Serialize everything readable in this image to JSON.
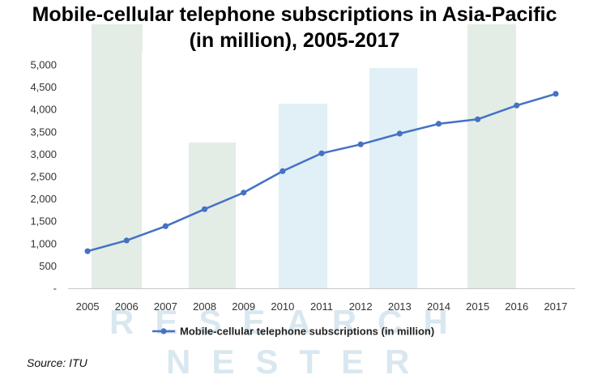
{
  "chart_data": {
    "type": "line",
    "title_line1": "Mobile-cellular telephone subscriptions in Asia-Pacific",
    "title_line2": "(in million), 2005-2017",
    "x": [
      "2005",
      "2006",
      "2007",
      "2008",
      "2009",
      "2010",
      "2011",
      "2012",
      "2013",
      "2014",
      "2015",
      "2016",
      "2017"
    ],
    "series": [
      {
        "name": "Mobile-cellular telephone subscriptions (in million)",
        "values": [
          830,
          1070,
          1390,
          1770,
          2140,
          2620,
          3020,
          3220,
          3460,
          3680,
          3780,
          4090,
          4350
        ]
      }
    ],
    "y_ticks": [
      "-",
      "500",
      "1,000",
      "1,500",
      "2,000",
      "2,500",
      "3,000",
      "3,500",
      "4,000",
      "4,500",
      "5,000"
    ],
    "ylim": [
      0,
      5000
    ],
    "grid": false,
    "legend_position": "bottom",
    "line_color": "#4472c4"
  },
  "source": "Source: ITU",
  "watermark": {
    "line1": "RESEARCH",
    "line2": "NESTER"
  }
}
